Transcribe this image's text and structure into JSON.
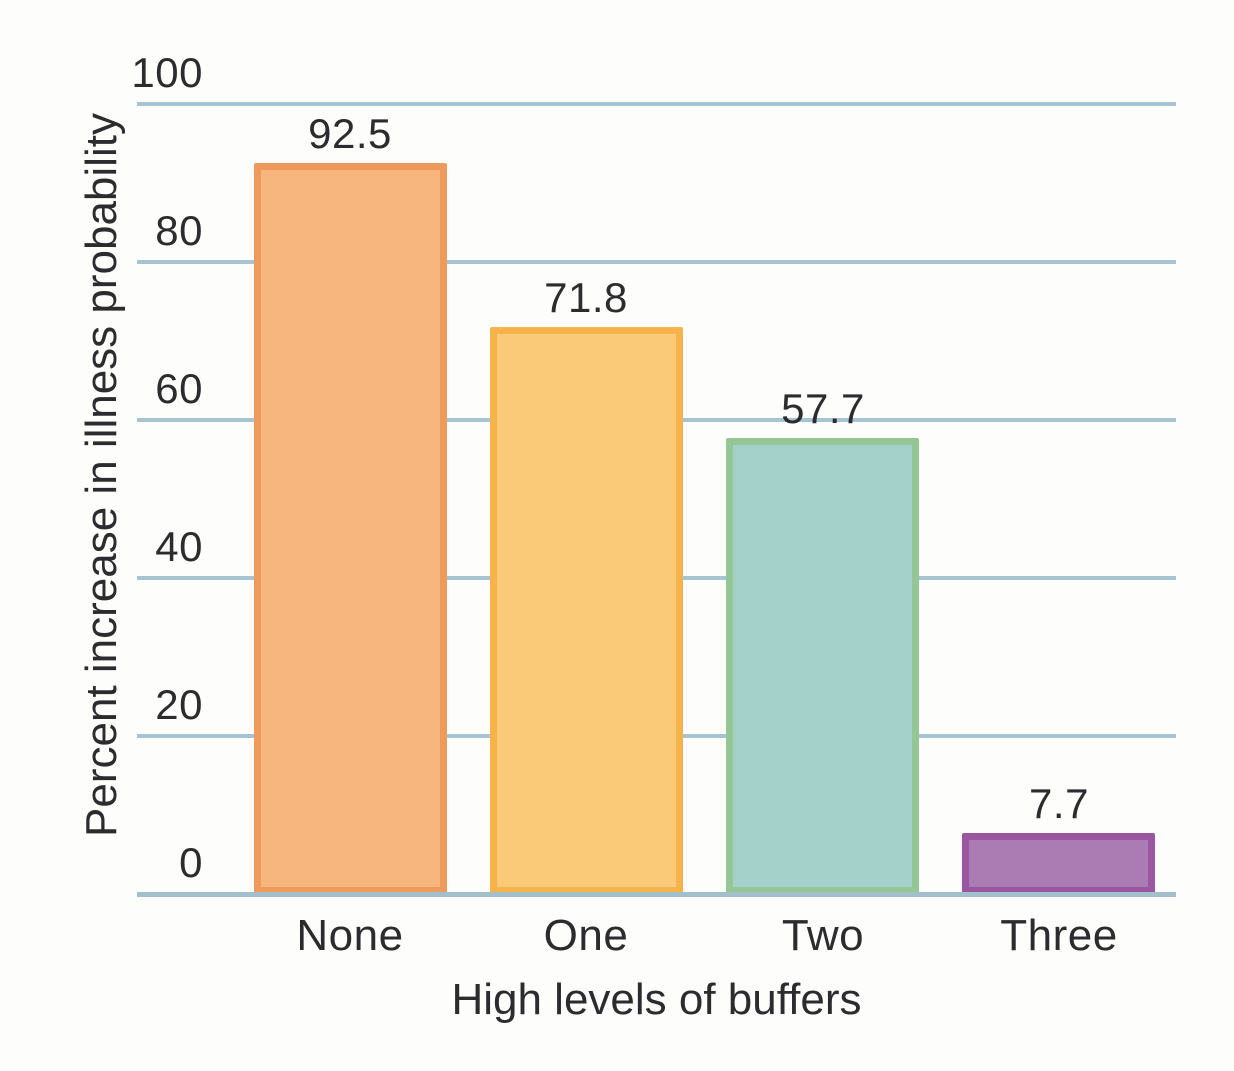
{
  "chart_data": {
    "type": "bar",
    "categories": [
      "None",
      "One",
      "Two",
      "Three"
    ],
    "values": [
      92.5,
      71.8,
      57.7,
      7.7
    ],
    "value_labels": [
      "92.5",
      "71.8",
      "57.7",
      "7.7"
    ],
    "xlabel": "High levels of buffers",
    "ylabel": "Percent increase in illness probability",
    "ylim": [
      0,
      100
    ],
    "yticks": [
      0,
      20,
      40,
      60,
      80,
      100
    ],
    "grid": "horizontal-only",
    "legend": "none",
    "bar_colors": [
      {
        "fill": "#F7B67D",
        "border": "#EF9A5D"
      },
      {
        "fill": "#FACA78",
        "border": "#F6B24B"
      },
      {
        "fill": "#A4D2CB",
        "border": "#94C795"
      },
      {
        "fill": "#AB7BB4",
        "border": "#9A57A0"
      }
    ],
    "gridline_color": "#A7C4D3",
    "baseline_color": "#A2BFCC",
    "text_color": "#2C2C2F",
    "background_color": "#fdfdfc"
  }
}
